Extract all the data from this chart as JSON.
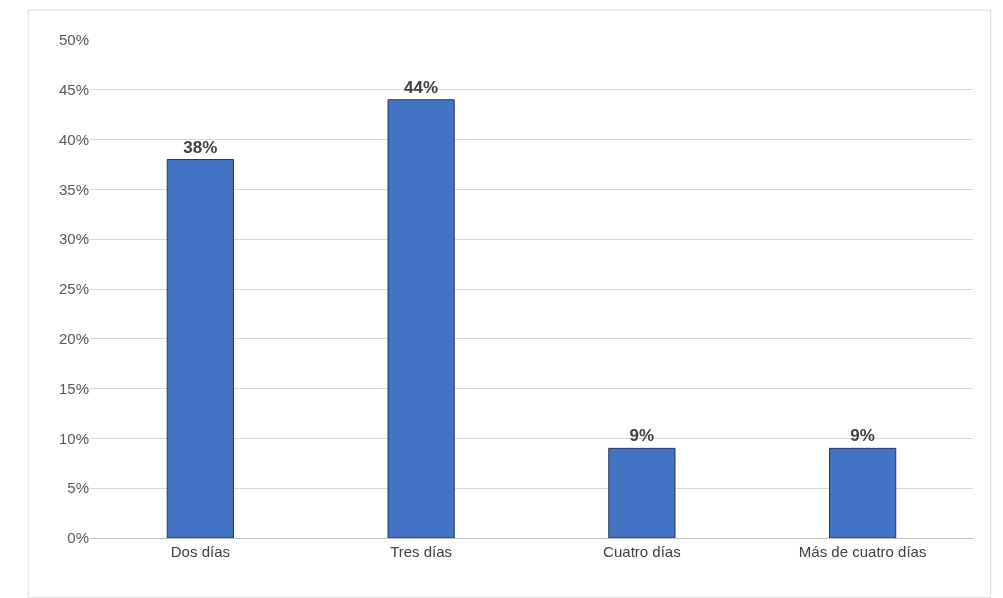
{
  "chart_data": {
    "type": "bar",
    "categories": [
      "Dos días",
      "Tres días",
      "Cuatro días",
      "Más de cuatro días"
    ],
    "values": [
      38,
      44,
      9,
      9
    ],
    "value_labels": [
      "38%",
      "44%",
      "9%",
      "9%"
    ],
    "color": "#4472c4",
    "ylim": [
      0,
      50
    ],
    "yticks": [
      {
        "value": 0,
        "label": "0%"
      },
      {
        "value": 5,
        "label": "5%"
      },
      {
        "value": 10,
        "label": "10%"
      },
      {
        "value": 15,
        "label": "15%"
      },
      {
        "value": 20,
        "label": "20%"
      },
      {
        "value": 25,
        "label": "25%"
      },
      {
        "value": 30,
        "label": "30%"
      },
      {
        "value": 35,
        "label": "35%"
      },
      {
        "value": 40,
        "label": "40%"
      },
      {
        "value": 45,
        "label": "45%"
      },
      {
        "value": 50,
        "label": "50%"
      }
    ],
    "grid": "y"
  }
}
